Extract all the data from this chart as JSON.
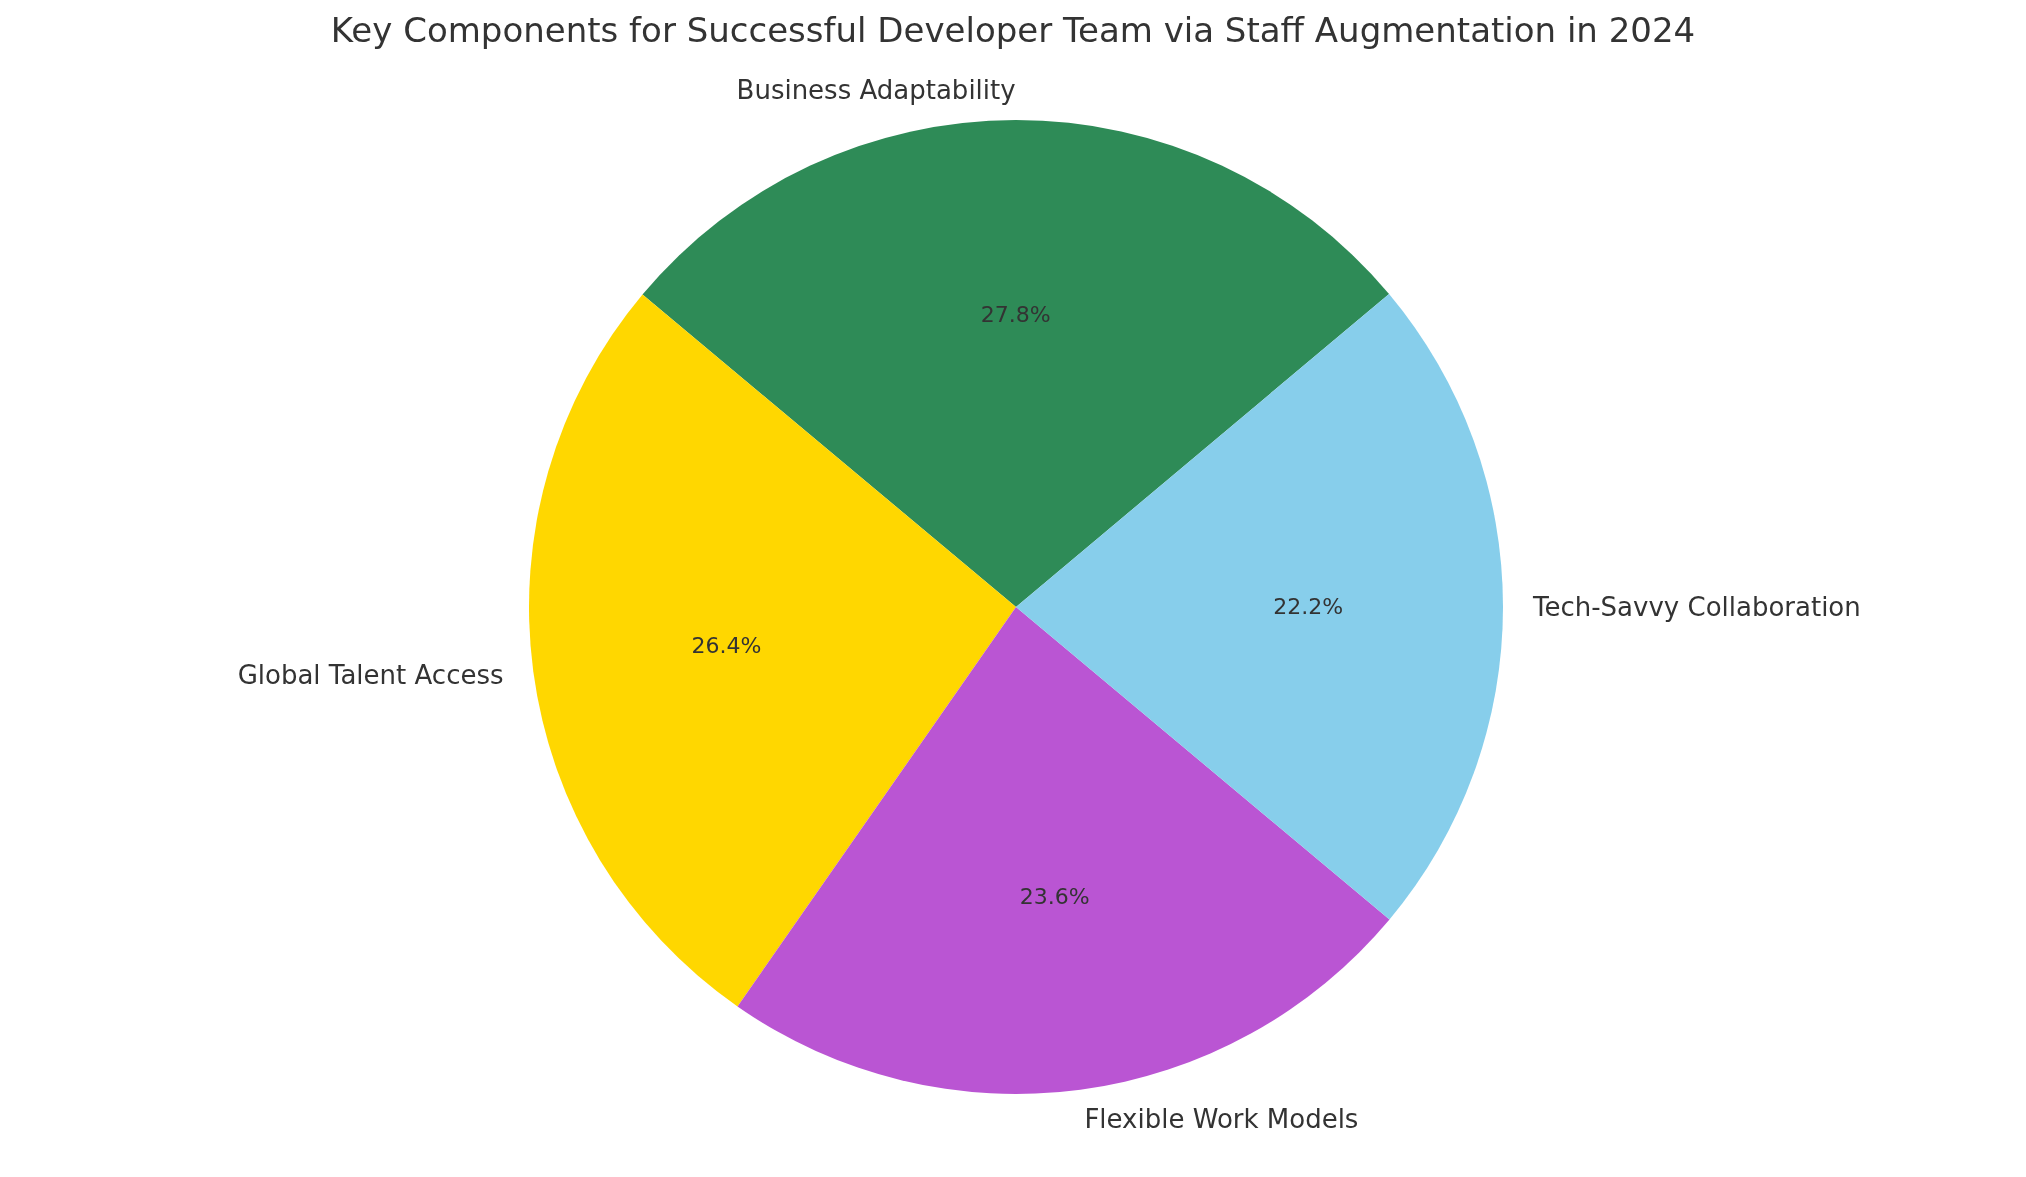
{
  "chart_data": {
    "type": "pie",
    "title": "Key Components for Successful Developer Team via Staff Augmentation in 2024",
    "categories": [
      "Business Adaptability",
      "Global Talent Access",
      "Flexible Work Models",
      "Tech-Savvy Collaboration"
    ],
    "values": [
      27.8,
      26.4,
      23.6,
      22.2
    ],
    "colors": [
      "#2e8b57",
      "#ffd700",
      "#ba55d3",
      "#87ceeb"
    ],
    "value_labels": [
      "27.8%",
      "26.4%",
      "23.6%",
      "22.2%"
    ],
    "legend": false
  }
}
